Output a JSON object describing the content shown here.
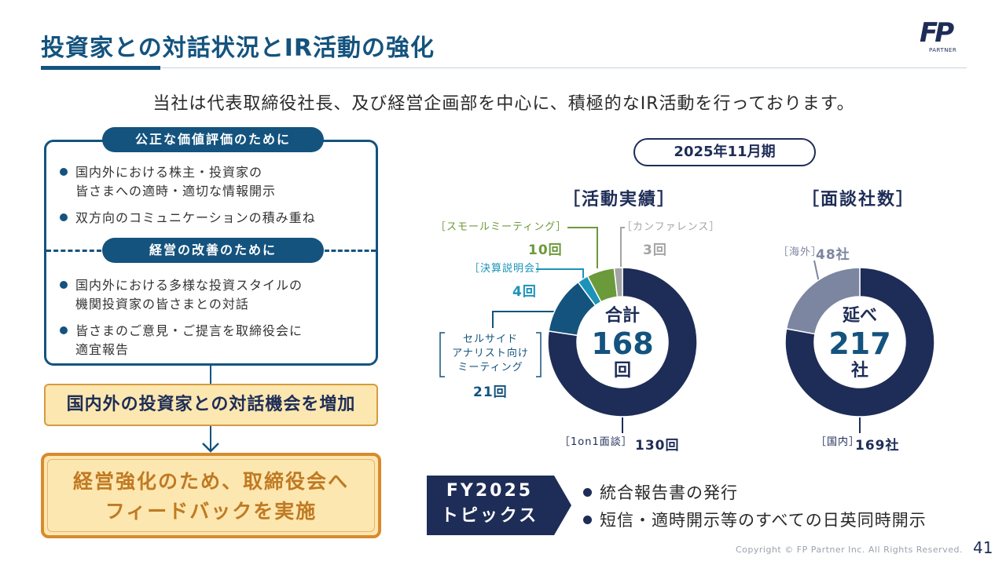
{
  "header": {
    "title": "投資家との対話状況とIR活動の強化",
    "logo_text": "FP",
    "logo_sub": "PARTNER"
  },
  "lead": "当社は代表取締役社長、及び経営企画部を中心に、積極的なIR活動を行っております。",
  "left": {
    "section1": {
      "heading": "公正な価値評価のために",
      "bullets": [
        [
          "国内外における株主・投資家の",
          "皆さまへの適時・適切な情報開示"
        ],
        [
          "双方向のコミュニケーションの積み重ね"
        ]
      ]
    },
    "section2": {
      "heading": "経営の改善のために",
      "bullets": [
        [
          "国内外における多様な投資スタイルの",
          "機関投資家の皆さまとの対話"
        ],
        [
          "皆さまのご意見・ご提言を取締役会に",
          "適宜報告"
        ]
      ]
    },
    "step1": "国内外の投資家との対話機会を増加",
    "step2": [
      "経営強化のため、取締役会へ",
      "フィードバックを実施"
    ]
  },
  "period": "2025年11月期",
  "chart_data": [
    {
      "type": "pie",
      "title": "［活動実績］",
      "center": {
        "top": "合計",
        "value": "168",
        "bottom": "回"
      },
      "slices": [
        {
          "label": "［1on1面談］",
          "value": 130,
          "value_text": "130回",
          "color": "#1e2d57"
        },
        {
          "label": [
            "セルサイド",
            "アナリスト向け",
            "ミーティング"
          ],
          "value": 21,
          "value_text": "21回",
          "color": "#14537e"
        },
        {
          "label": "［決算説明会］",
          "value": 4,
          "value_text": "4回",
          "color": "#1c93b8"
        },
        {
          "label": "［スモールミーティング］",
          "value": 10,
          "value_text": "10回",
          "color": "#6b9a3a"
        },
        {
          "label": "［カンファレンス］",
          "value": 3,
          "value_text": "3回",
          "color": "#a4a4a4"
        }
      ]
    },
    {
      "type": "pie",
      "title": "［面談社数］",
      "center": {
        "top": "延べ",
        "value": "217",
        "bottom": "社"
      },
      "slices": [
        {
          "label": "［国内］",
          "value": 169,
          "value_text": "169社",
          "color": "#1e2d57"
        },
        {
          "label": "［海外］",
          "value": 48,
          "value_text": "48社",
          "color": "#7d86a0"
        }
      ]
    }
  ],
  "topics": {
    "tag": [
      "FY2025",
      "トピックス"
    ],
    "items": [
      "統合報告書の発行",
      "短信・適時開示等のすべての日英同時開示"
    ],
    "tag_color": "#1e2d57"
  },
  "footer": {
    "copyright": "Copyright © FP Partner Inc. All Rights Reserved.",
    "page": "41"
  }
}
